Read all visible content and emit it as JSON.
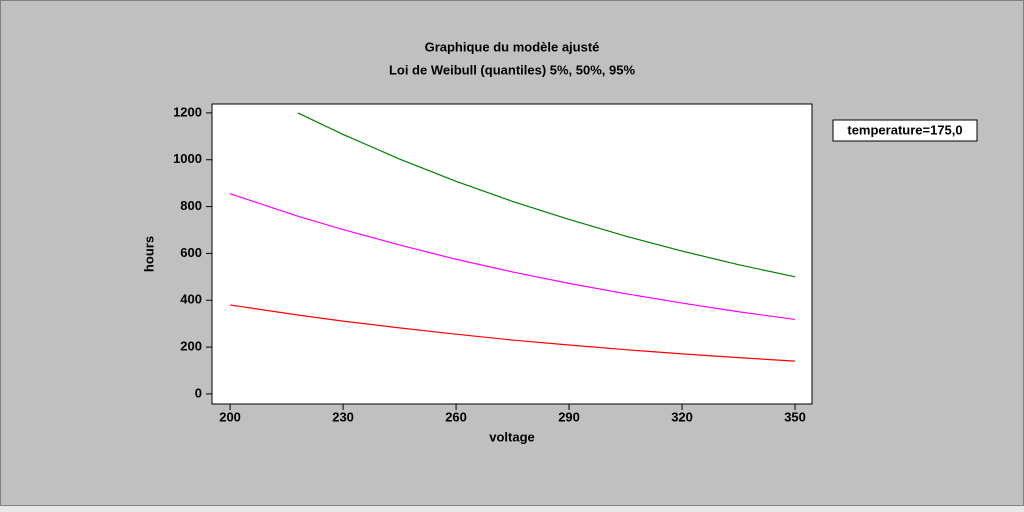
{
  "chart_data": {
    "type": "line",
    "title": "Graphique du modèle ajusté",
    "subtitle": "Loi de Weibull (quantiles) 5%,  50%,  95%",
    "x_label": "voltage",
    "y_label": "hours",
    "annotation": "temperature=175,0",
    "x": [
      200,
      218,
      230,
      245,
      260,
      275,
      290,
      305,
      320,
      335,
      350
    ],
    "series": [
      {
        "color": "#008000",
        "values": [
          null,
          1200,
          1108,
          1003,
          908,
          822,
          745,
          674,
          610,
          552,
          500
        ]
      },
      {
        "color": "#ff00ff",
        "values": [
          855,
          759,
          702,
          636,
          575,
          521,
          472,
          428,
          388,
          351,
          318
        ]
      },
      {
        "color": "#ff0000",
        "values": [
          380,
          337,
          311,
          282,
          255,
          230,
          209,
          189,
          171,
          155,
          140
        ]
      }
    ],
    "xlim": [
      195.2,
      354.5
    ],
    "ylim": [
      -43,
      1238
    ],
    "xticks": [
      200,
      230,
      260,
      290,
      320,
      350
    ],
    "yticks": [
      0,
      200,
      400,
      600,
      800,
      1000,
      1200
    ]
  }
}
